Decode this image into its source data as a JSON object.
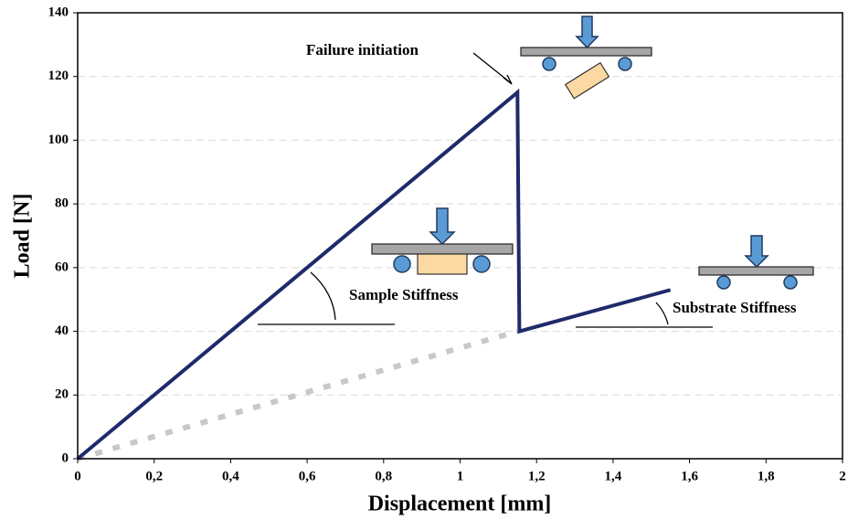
{
  "chart_data": {
    "type": "line",
    "xlabel": "Displacement [mm]",
    "ylabel": "Load [N]",
    "series": [
      {
        "color": "#1f2a6b",
        "x": [
          0,
          1.15,
          1.155,
          1.55
        ],
        "values": [
          0,
          115,
          40,
          53
        ],
        "style": "solid"
      },
      {
        "color": "#c8c8c8",
        "x": [
          0,
          1.15
        ],
        "values": [
          0,
          40
        ],
        "style": "dotted"
      }
    ],
    "xlim": [
      0,
      2
    ],
    "ylim": [
      0,
      140
    ],
    "xticks": [
      0,
      {
        "value": 0.2,
        "label": "0,2"
      },
      {
        "value": 0.4,
        "label": "0,4"
      },
      {
        "value": 0.6,
        "label": "0,6"
      },
      {
        "value": 0.8,
        "label": "0,8"
      },
      1,
      {
        "value": 1.2,
        "label": "1,2"
      },
      {
        "value": 1.4,
        "label": "1,4"
      },
      {
        "value": 1.6,
        "label": "1,6"
      },
      {
        "value": 1.8,
        "label": "1,8"
      },
      2
    ],
    "yticks": [
      0,
      20,
      40,
      60,
      80,
      100,
      120,
      140
    ],
    "grid": true,
    "annotations": [
      "Failure initiation",
      "Sample Stiffness",
      "Substrate Stiffness"
    ]
  }
}
